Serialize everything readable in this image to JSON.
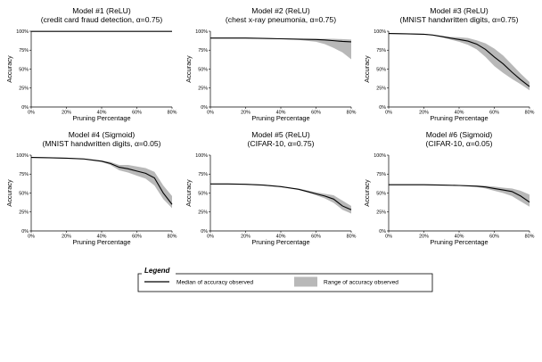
{
  "colors": {
    "median": "#000000",
    "range": "#b8b8b8",
    "axis": "#000000",
    "grid": "#d6d6d6"
  },
  "legend": {
    "title": "Legend",
    "median_label": "Median of accuracy observed",
    "range_label": "Range of accuracy observed"
  },
  "chart_data": [
    {
      "type": "line",
      "title": "Model #1 (ReLU)",
      "subtitle": "(credit card fraud detection, α=0.75)",
      "xlabel": "Pruning Percentage",
      "ylabel": "Accuracy",
      "xlim": [
        0,
        80
      ],
      "ylim": [
        0,
        100
      ],
      "xticks": [
        "0%",
        "20%",
        "40%",
        "60%",
        "80%"
      ],
      "yticks": [
        "0%",
        "25%",
        "50%",
        "75%",
        "100%"
      ],
      "grid": false,
      "x": [
        0,
        10,
        20,
        30,
        40,
        50,
        60,
        70,
        80
      ],
      "median": [
        99.8,
        99.8,
        99.8,
        99.8,
        99.8,
        99.8,
        99.8,
        99.8,
        99.8
      ],
      "lower": [
        99.6,
        99.6,
        99.6,
        99.6,
        99.6,
        99.6,
        99.6,
        99.6,
        99.6
      ],
      "upper": [
        100,
        100,
        100,
        100,
        100,
        100,
        100,
        100,
        100
      ]
    },
    {
      "type": "line",
      "title": "Model #2 (ReLU)",
      "subtitle": "(chest x-ray pneumonia, α=0.75)",
      "xlabel": "Pruning Percentage",
      "ylabel": "Accuracy",
      "xlim": [
        0,
        80
      ],
      "ylim": [
        0,
        100
      ],
      "xticks": [
        "0%",
        "20%",
        "40%",
        "60%",
        "80%"
      ],
      "yticks": [
        "0%",
        "25%",
        "50%",
        "75%",
        "100%"
      ],
      "grid": false,
      "x": [
        0,
        10,
        20,
        30,
        40,
        50,
        60,
        65,
        70,
        75,
        80
      ],
      "median": [
        91,
        91,
        91,
        90.5,
        90,
        89.5,
        89,
        88.5,
        87.5,
        86.5,
        86
      ],
      "lower": [
        90.5,
        90.5,
        90.5,
        90,
        89.5,
        88.5,
        86,
        83,
        78,
        72,
        63
      ],
      "upper": [
        91.5,
        91.5,
        91.5,
        91,
        90.5,
        90,
        90,
        90,
        90,
        89.5,
        89
      ]
    },
    {
      "type": "line",
      "title": "Model #3 (ReLU)",
      "subtitle": "(MNIST handwritten digits, α=0.75)",
      "xlabel": "Pruning Percentage",
      "ylabel": "Accuracy",
      "xlim": [
        0,
        80
      ],
      "ylim": [
        0,
        100
      ],
      "xticks": [
        "0%",
        "20%",
        "40%",
        "60%",
        "80%"
      ],
      "yticks": [
        "0%",
        "25%",
        "50%",
        "75%",
        "100%"
      ],
      "grid": false,
      "x": [
        0,
        10,
        20,
        25,
        30,
        35,
        40,
        45,
        50,
        55,
        60,
        65,
        70,
        75,
        80
      ],
      "median": [
        97,
        96.5,
        96,
        95,
        93,
        91,
        89,
        87,
        83,
        76,
        66,
        57,
        46,
        36,
        27
      ],
      "lower": [
        96.5,
        96,
        95.5,
        94,
        92,
        89,
        86,
        82,
        76,
        66,
        54,
        45,
        37,
        30,
        22
      ],
      "upper": [
        97.5,
        97,
        96.5,
        95.5,
        94,
        92.5,
        92,
        91,
        88,
        84,
        77,
        68,
        56,
        44,
        33
      ]
    },
    {
      "type": "line",
      "title": "Model #4 (Sigmoid)",
      "subtitle": "(MNIST handwritten digits, α=0.05)",
      "xlabel": "Pruning Percentage",
      "ylabel": "Accuracy",
      "xlim": [
        0,
        80
      ],
      "ylim": [
        0,
        100
      ],
      "xticks": [
        "0%",
        "20%",
        "40%",
        "60%",
        "80%"
      ],
      "yticks": [
        "0%",
        "25%",
        "50%",
        "75%",
        "100%"
      ],
      "grid": false,
      "x": [
        0,
        10,
        20,
        30,
        40,
        45,
        50,
        55,
        60,
        65,
        70,
        75,
        80
      ],
      "median": [
        97,
        96.5,
        96,
        95,
        92,
        89,
        84,
        82,
        79,
        76,
        70,
        50,
        35
      ],
      "lower": [
        96.5,
        96,
        95.5,
        94,
        91,
        87,
        80,
        77,
        73,
        69,
        60,
        42,
        30
      ],
      "upper": [
        97.5,
        97,
        96.5,
        95.5,
        93,
        91,
        87,
        87,
        85,
        83,
        78,
        60,
        46
      ]
    },
    {
      "type": "line",
      "title": "Model #5 (ReLU)",
      "subtitle": "(CIFAR-10, α=0.75)",
      "xlabel": "Pruning Percentage",
      "ylabel": "Accuracy",
      "xlim": [
        0,
        80
      ],
      "ylim": [
        0,
        100
      ],
      "xticks": [
        "0%",
        "20%",
        "40%",
        "60%",
        "80%"
      ],
      "yticks": [
        "0%",
        "25%",
        "50%",
        "75%",
        "100%"
      ],
      "grid": false,
      "x": [
        0,
        10,
        20,
        30,
        40,
        50,
        55,
        60,
        65,
        70,
        75,
        80
      ],
      "median": [
        62,
        62,
        61.5,
        60.5,
        58.5,
        55,
        52,
        49,
        46,
        42,
        33,
        28
      ],
      "lower": [
        61.5,
        61.5,
        61,
        60,
        58,
        54,
        51,
        47,
        43,
        37,
        28,
        23
      ],
      "upper": [
        62.5,
        62.5,
        62,
        61,
        59,
        56,
        53.5,
        51,
        49,
        47,
        40,
        33
      ]
    },
    {
      "type": "line",
      "title": "Model #6 (Sigmoid)",
      "subtitle": "(CIFAR-10, α=0.05)",
      "xlabel": "Pruning Percentage",
      "ylabel": "Accuracy",
      "xlim": [
        0,
        80
      ],
      "ylim": [
        0,
        100
      ],
      "xticks": [
        "0%",
        "20%",
        "40%",
        "60%",
        "80%"
      ],
      "yticks": [
        "0%",
        "25%",
        "50%",
        "75%",
        "100%"
      ],
      "grid": false,
      "x": [
        0,
        10,
        20,
        30,
        40,
        50,
        55,
        60,
        65,
        70,
        75,
        80
      ],
      "median": [
        61,
        61,
        61,
        60.5,
        60,
        59,
        58,
        56,
        54,
        52,
        46,
        38
      ],
      "lower": [
        60.5,
        60.5,
        60.5,
        60,
        59.5,
        58,
        56,
        53,
        50,
        46,
        39,
        32
      ],
      "upper": [
        61.5,
        61.5,
        61.5,
        61,
        60.5,
        60,
        59.5,
        58.5,
        57,
        56,
        53,
        48
      ]
    }
  ]
}
